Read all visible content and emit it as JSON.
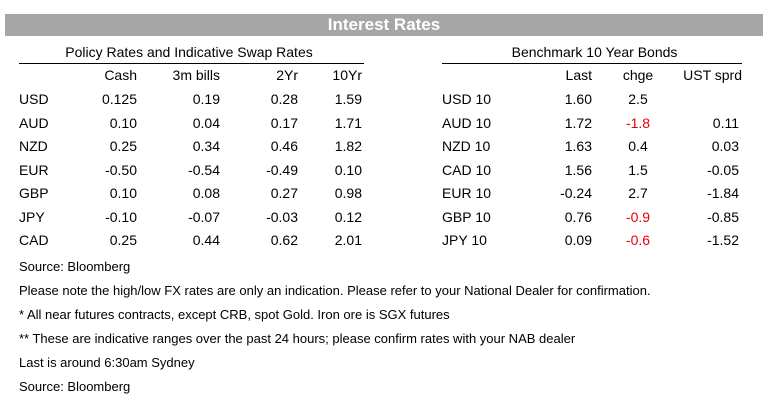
{
  "title": "Interest Rates",
  "left_table": {
    "title": "Policy Rates and Indicative Swap Rates",
    "columns": [
      "Cash",
      "3m bills",
      "2Yr",
      "10Yr"
    ],
    "rows": [
      {
        "label": "USD",
        "values": [
          "0.125",
          "0.19",
          "0.28",
          "1.59"
        ]
      },
      {
        "label": "AUD",
        "values": [
          "0.10",
          "0.04",
          "0.17",
          "1.71"
        ]
      },
      {
        "label": "NZD",
        "values": [
          "0.25",
          "0.34",
          "0.46",
          "1.82"
        ]
      },
      {
        "label": "EUR",
        "values": [
          "-0.50",
          "-0.54",
          "-0.49",
          "0.10"
        ]
      },
      {
        "label": "GBP",
        "values": [
          "0.10",
          "0.08",
          "0.27",
          "0.98"
        ]
      },
      {
        "label": "JPY",
        "values": [
          "-0.10",
          "-0.07",
          "-0.03",
          "0.12"
        ]
      },
      {
        "label": "CAD",
        "values": [
          "0.25",
          "0.44",
          "0.62",
          "2.01"
        ]
      }
    ]
  },
  "right_table": {
    "title": "Benchmark 10 Year Bonds",
    "columns": [
      "Last",
      "chge",
      "UST sprd"
    ],
    "rows": [
      {
        "label": "USD 10",
        "last": "1.60",
        "chge": "2.5",
        "sprd": ""
      },
      {
        "label": "AUD 10",
        "last": "1.72",
        "chge": "-1.8",
        "sprd": "0.11"
      },
      {
        "label": "NZD 10",
        "last": "1.63",
        "chge": "0.4",
        "sprd": "0.03"
      },
      {
        "label": "CAD 10",
        "last": "1.56",
        "chge": "1.5",
        "sprd": "-0.05"
      },
      {
        "label": "EUR 10",
        "last": "-0.24",
        "chge": "2.7",
        "sprd": "-1.84"
      },
      {
        "label": "GBP 10",
        "last": "0.76",
        "chge": "-0.9",
        "sprd": "-0.85"
      },
      {
        "label": "JPY 10",
        "last": "0.09",
        "chge": "-0.6",
        "sprd": "-1.52"
      }
    ]
  },
  "notes": [
    "Source: Bloomberg",
    "Please note the high/low FX rates are only an indication. Please refer to your National Dealer for confirmation.",
    "* All near futures contracts, except CRB, spot Gold.  Iron ore is SGX futures",
    "** These are indicative ranges over the past 24 hours; please confirm rates with your NAB dealer",
    "Last is around 6:30am Sydney",
    "Source: Bloomberg"
  ],
  "colors": {
    "header_bg": "#a6a6a6",
    "negative_change": "#e8000b"
  }
}
